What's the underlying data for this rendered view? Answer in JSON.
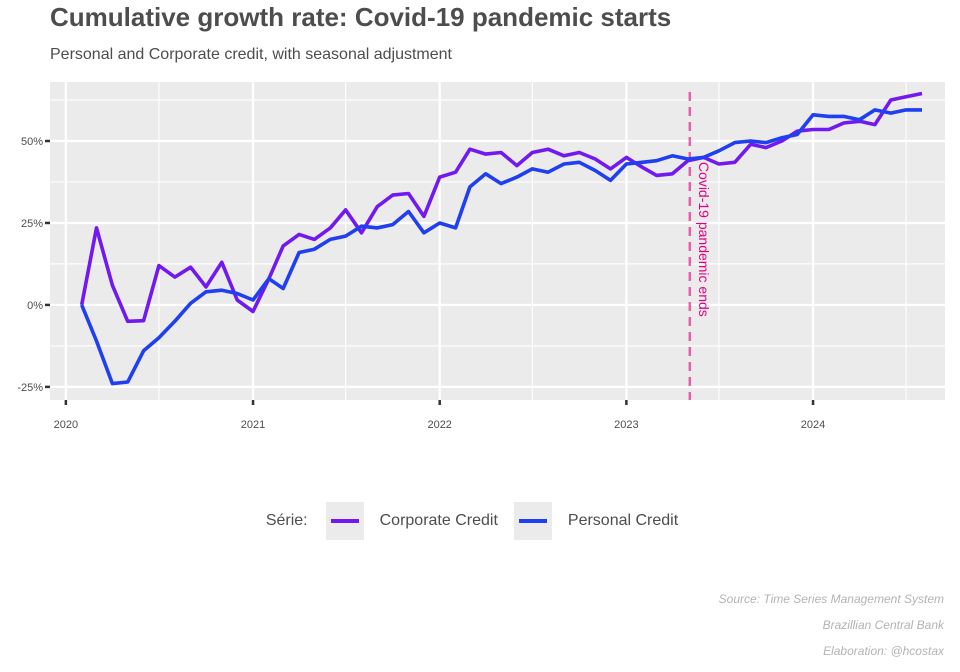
{
  "chart_data": {
    "type": "line",
    "title": "Cumulative growth rate: Covid-19 pandemic starts",
    "subtitle": "Personal and Corporate credit, with seasonal adjustment",
    "x_ticks": [
      "2020",
      "2021",
      "2022",
      "2023",
      "2024"
    ],
    "y_ticks": [
      "-25%",
      "0%",
      "25%",
      "50%"
    ],
    "y_tick_values": [
      -25,
      0,
      25,
      50
    ],
    "xlim": [
      "2019-12-01",
      "2024-09-15"
    ],
    "ylim": [
      -29,
      68
    ],
    "grid": true,
    "legend_position": "bottom",
    "legend_title": "Série:",
    "annotation": {
      "label": "Covid-19 pandemic ends",
      "x": "2023-05-05",
      "color": "#e6007e"
    },
    "series": [
      {
        "name": "Corporate Credit",
        "color": "#7119f0",
        "points": [
          [
            "2020-02-01",
            0
          ],
          [
            "2020-03-01",
            23.5
          ],
          [
            "2020-04-01",
            6
          ],
          [
            "2020-05-01",
            -5
          ],
          [
            "2020-06-01",
            -4.8
          ],
          [
            "2020-07-01",
            12
          ],
          [
            "2020-08-01",
            8.5
          ],
          [
            "2020-09-01",
            11.5
          ],
          [
            "2020-10-01",
            5.5
          ],
          [
            "2020-11-01",
            13
          ],
          [
            "2020-12-01",
            1.5
          ],
          [
            "2021-01-01",
            -2
          ],
          [
            "2021-02-01",
            8
          ],
          [
            "2021-03-01",
            18
          ],
          [
            "2021-04-01",
            21.5
          ],
          [
            "2021-05-01",
            20
          ],
          [
            "2021-06-01",
            23.5
          ],
          [
            "2021-07-01",
            29
          ],
          [
            "2021-08-01",
            22
          ],
          [
            "2021-09-01",
            30
          ],
          [
            "2021-10-01",
            33.5
          ],
          [
            "2021-11-01",
            34
          ],
          [
            "2021-12-01",
            27
          ],
          [
            "2022-01-01",
            39
          ],
          [
            "2022-02-01",
            40.5
          ],
          [
            "2022-03-01",
            47.5
          ],
          [
            "2022-04-01",
            46
          ],
          [
            "2022-05-01",
            46.5
          ],
          [
            "2022-06-01",
            42.5
          ],
          [
            "2022-07-01",
            46.5
          ],
          [
            "2022-08-01",
            47.5
          ],
          [
            "2022-09-01",
            45.5
          ],
          [
            "2022-10-01",
            46.5
          ],
          [
            "2022-11-01",
            44.5
          ],
          [
            "2022-12-01",
            41.5
          ],
          [
            "2023-01-01",
            45
          ],
          [
            "2023-02-01",
            42
          ],
          [
            "2023-03-01",
            39.5
          ],
          [
            "2023-04-01",
            40
          ],
          [
            "2023-05-01",
            44
          ],
          [
            "2023-06-01",
            45
          ],
          [
            "2023-07-01",
            43
          ],
          [
            "2023-08-01",
            43.5
          ],
          [
            "2023-09-01",
            49
          ],
          [
            "2023-10-01",
            48
          ],
          [
            "2023-11-01",
            50
          ],
          [
            "2023-12-01",
            53
          ],
          [
            "2024-01-01",
            53.5
          ],
          [
            "2024-02-01",
            53.5
          ],
          [
            "2024-03-01",
            55.5
          ],
          [
            "2024-04-01",
            56
          ],
          [
            "2024-05-01",
            55
          ],
          [
            "2024-06-01",
            62.5
          ],
          [
            "2024-07-01",
            63.5
          ],
          [
            "2024-08-01",
            64.5
          ]
        ]
      },
      {
        "name": "Personal Credit",
        "color": "#1f3ff0",
        "points": [
          [
            "2020-02-01",
            0
          ],
          [
            "2020-03-01",
            -11
          ],
          [
            "2020-04-01",
            -24
          ],
          [
            "2020-05-01",
            -23.5
          ],
          [
            "2020-06-01",
            -14
          ],
          [
            "2020-07-01",
            -10
          ],
          [
            "2020-08-01",
            -5
          ],
          [
            "2020-09-01",
            0.5
          ],
          [
            "2020-10-01",
            4
          ],
          [
            "2020-11-01",
            4.5
          ],
          [
            "2020-12-01",
            3.5
          ],
          [
            "2021-01-01",
            1.5
          ],
          [
            "2021-02-01",
            8
          ],
          [
            "2021-03-01",
            5
          ],
          [
            "2021-04-01",
            16
          ],
          [
            "2021-05-01",
            17
          ],
          [
            "2021-06-01",
            20
          ],
          [
            "2021-07-01",
            21
          ],
          [
            "2021-08-01",
            24
          ],
          [
            "2021-09-01",
            23.5
          ],
          [
            "2021-10-01",
            24.5
          ],
          [
            "2021-11-01",
            28.5
          ],
          [
            "2021-12-01",
            22
          ],
          [
            "2022-01-01",
            25
          ],
          [
            "2022-02-01",
            23.5
          ],
          [
            "2022-03-01",
            36
          ],
          [
            "2022-04-01",
            40
          ],
          [
            "2022-05-01",
            37
          ],
          [
            "2022-06-01",
            39
          ],
          [
            "2022-07-01",
            41.5
          ],
          [
            "2022-08-01",
            40.5
          ],
          [
            "2022-09-01",
            43
          ],
          [
            "2022-10-01",
            43.5
          ],
          [
            "2022-11-01",
            41
          ],
          [
            "2022-12-01",
            38
          ],
          [
            "2023-01-01",
            43
          ],
          [
            "2023-02-01",
            43.5
          ],
          [
            "2023-03-01",
            44
          ],
          [
            "2023-04-01",
            45.5
          ],
          [
            "2023-05-01",
            44.5
          ],
          [
            "2023-06-01",
            45
          ],
          [
            "2023-07-01",
            47
          ],
          [
            "2023-08-01",
            49.5
          ],
          [
            "2023-09-01",
            50
          ],
          [
            "2023-10-01",
            49.5
          ],
          [
            "2023-11-01",
            51
          ],
          [
            "2023-12-01",
            52
          ],
          [
            "2024-01-01",
            58
          ],
          [
            "2024-02-01",
            57.5
          ],
          [
            "2024-03-01",
            57.5
          ],
          [
            "2024-04-01",
            56.5
          ],
          [
            "2024-05-01",
            59.5
          ],
          [
            "2024-06-01",
            58.5
          ],
          [
            "2024-07-01",
            59.5
          ],
          [
            "2024-08-01",
            59.5
          ]
        ]
      }
    ]
  },
  "captions": {
    "source": "Source: Time Series Management System",
    "bank": "Brazillian Central Bank",
    "elaboration": "Elaboration: @hcostax"
  }
}
